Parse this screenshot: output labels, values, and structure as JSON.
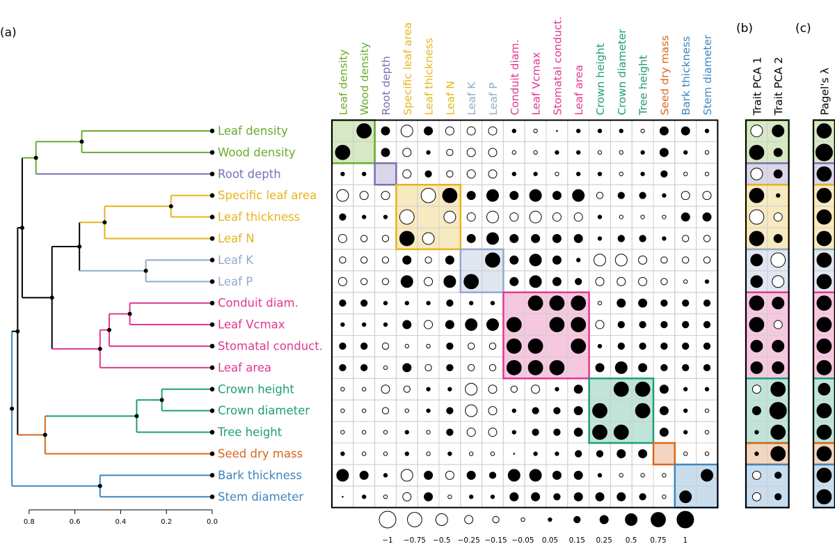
{
  "panels": {
    "a": "(a)",
    "b": "(b)",
    "c": "(c)"
  },
  "traits": [
    "Leaf density",
    "Wood density",
    "Root depth",
    "Specific leaf area",
    "Leaf thickness",
    "Leaf N",
    "Leaf K",
    "Leaf P",
    "Conduit diam.",
    "Leaf Vcmax",
    "Stomatal conduct.",
    "Leaf area",
    "Crown height",
    "Crown diameter",
    "Tree height",
    "Seed dry mass",
    "Bark thickness",
    "Stem diameter"
  ],
  "colors": {
    "green": "#6aab2b",
    "purple": "#7b6fb4",
    "yellow": "#e7b41d",
    "steel": "#93a9cc",
    "magenta": "#e0388f",
    "teal": "#1c9e77",
    "orange": "#d6681b",
    "blue": "#3d86c0"
  },
  "trait_colors": [
    "green",
    "green",
    "purple",
    "yellow",
    "yellow",
    "yellow",
    "steel",
    "steel",
    "magenta",
    "magenta",
    "magenta",
    "magenta",
    "teal",
    "teal",
    "teal",
    "orange",
    "blue",
    "blue"
  ],
  "groups": [
    {
      "start": 0,
      "end": 1,
      "color": "green"
    },
    {
      "start": 2,
      "end": 2,
      "color": "purple"
    },
    {
      "start": 3,
      "end": 5,
      "color": "yellow"
    },
    {
      "start": 6,
      "end": 7,
      "color": "steel"
    },
    {
      "start": 8,
      "end": 11,
      "color": "magenta"
    },
    {
      "start": 12,
      "end": 14,
      "color": "teal"
    },
    {
      "start": 15,
      "end": 15,
      "color": "orange"
    },
    {
      "start": 16,
      "end": 17,
      "color": "blue"
    }
  ],
  "tree_axis": {
    "ticks": [
      0.8,
      0.6,
      0.4,
      0.2,
      0.0
    ],
    "tick_labels": [
      "0.8",
      "0.6",
      "0.4",
      "0.2",
      "0.0"
    ]
  },
  "tree": {
    "name": "root",
    "height": 0.875,
    "color": "blue",
    "children": [
      {
        "name": "A",
        "height": 0.85,
        "color": "black",
        "children": [
          {
            "name": "B",
            "height": 0.83,
            "color": "black",
            "children": [
              {
                "name": "C",
                "height": 0.77,
                "color": "green",
                "children": [
                  {
                    "name": "D",
                    "height": 0.57,
                    "color": "green",
                    "children": [
                      {
                        "leaf": 0
                      },
                      {
                        "leaf": 1
                      }
                    ]
                  },
                  {
                    "leaf": 2,
                    "color": "purple"
                  }
                ]
              },
              {
                "name": "E",
                "height": 0.7,
                "color": "black",
                "children": [
                  {
                    "name": "F",
                    "height": 0.58,
                    "color": "black",
                    "children": [
                      {
                        "name": "G",
                        "height": 0.47,
                        "color": "yellow",
                        "children": [
                          {
                            "name": "H",
                            "height": 0.18,
                            "color": "yellow",
                            "children": [
                              {
                                "leaf": 3
                              },
                              {
                                "leaf": 4
                              }
                            ]
                          },
                          {
                            "leaf": 5
                          }
                        ]
                      },
                      {
                        "name": "I",
                        "height": 0.29,
                        "color": "steel",
                        "children": [
                          {
                            "leaf": 6
                          },
                          {
                            "leaf": 7
                          }
                        ]
                      }
                    ]
                  },
                  {
                    "name": "J",
                    "height": 0.49,
                    "color": "magenta",
                    "children": [
                      {
                        "name": "K",
                        "height": 0.45,
                        "color": "magenta",
                        "children": [
                          {
                            "name": "L",
                            "height": 0.36,
                            "color": "magenta",
                            "children": [
                              {
                                "leaf": 8
                              },
                              {
                                "leaf": 9
                              }
                            ]
                          },
                          {
                            "leaf": 10
                          }
                        ]
                      },
                      {
                        "leaf": 11
                      }
                    ]
                  }
                ]
              }
            ]
          },
          {
            "name": "M",
            "height": 0.73,
            "color": "orange",
            "children": [
              {
                "name": "N",
                "height": 0.33,
                "color": "teal",
                "children": [
                  {
                    "name": "O",
                    "height": 0.22,
                    "color": "teal",
                    "children": [
                      {
                        "leaf": 12
                      },
                      {
                        "leaf": 13
                      }
                    ]
                  },
                  {
                    "leaf": 14
                  }
                ]
              },
              {
                "leaf": 15
              }
            ]
          }
        ]
      },
      {
        "name": "P",
        "height": 0.49,
        "color": "blue",
        "children": [
          {
            "leaf": 16
          },
          {
            "leaf": 17
          }
        ]
      }
    ]
  },
  "chart_data": {
    "type": "heatmap",
    "row_labels": [
      "Leaf density",
      "Wood density",
      "Root depth",
      "Specific leaf area",
      "Leaf thickness",
      "Leaf N",
      "Leaf K",
      "Leaf P",
      "Conduit diam.",
      "Leaf Vcmax",
      "Stomatal conduct.",
      "Leaf area",
      "Crown height",
      "Crown diameter",
      "Tree height",
      "Seed dry mass",
      "Bark thickness",
      "Stem diameter"
    ],
    "col_labels": [
      "Leaf density",
      "Wood density",
      "Root depth",
      "Specific leaf area",
      "Leaf thickness",
      "Leaf N",
      "Leaf K",
      "Leaf P",
      "Conduit diam.",
      "Leaf Vcmax",
      "Stomatal conduct.",
      "Leaf area",
      "Crown height",
      "Crown diameter",
      "Tree height",
      "Seed dry mass",
      "Bark thickness",
      "Stem diameter"
    ],
    "values": [
      [
        null,
        0.75,
        0.25,
        -0.5,
        0.25,
        -0.25,
        -0.25,
        -0.25,
        0.05,
        -0.05,
        0,
        0.05,
        0.05,
        0.05,
        -0.05,
        0.25,
        0.25,
        0.05
      ],
      [
        0.75,
        null,
        0.25,
        -0.25,
        0.05,
        -0.15,
        -0.25,
        -0.25,
        -0.05,
        -0.05,
        0.05,
        0.05,
        -0.05,
        -0.05,
        0.05,
        0.25,
        0.05,
        -0.05
      ],
      [
        0.05,
        0.05,
        null,
        -0.25,
        0.15,
        -0.15,
        -0.25,
        -0.25,
        0.05,
        0.05,
        -0.05,
        0.05,
        0.05,
        -0.05,
        0.05,
        0.15,
        -0.05,
        -0.05
      ],
      [
        -0.5,
        -0.25,
        -0.25,
        null,
        -0.75,
        0.75,
        0.25,
        0.5,
        0.25,
        0.5,
        0.25,
        0.5,
        -0.15,
        0.15,
        0.15,
        0.05,
        -0.25,
        -0.25
      ],
      [
        0.15,
        0.05,
        0.05,
        -0.75,
        null,
        -0.5,
        -0.25,
        -0.5,
        -0.25,
        -0.5,
        -0.25,
        -0.25,
        0.05,
        -0.05,
        -0.05,
        -0.05,
        0.25,
        0.25
      ],
      [
        -0.25,
        -0.15,
        -0.15,
        0.75,
        -0.5,
        null,
        0.25,
        0.5,
        0.25,
        0.25,
        0.25,
        0.25,
        0.05,
        0.15,
        0.15,
        0.05,
        -0.15,
        -0.15
      ],
      [
        -0.15,
        -0.15,
        -0.15,
        0.25,
        -0.15,
        0.25,
        null,
        0.75,
        0.25,
        0.5,
        0.25,
        0.05,
        -0.5,
        -0.5,
        -0.25,
        -0.15,
        -0.15,
        -0.15
      ],
      [
        -0.25,
        -0.15,
        -0.15,
        0.5,
        -0.25,
        0.5,
        0.75,
        null,
        0.25,
        0.5,
        0.25,
        0.15,
        -0.25,
        -0.25,
        -0.25,
        -0.15,
        -0.05,
        0.05
      ],
      [
        0.15,
        0.15,
        0.05,
        0.05,
        0.05,
        0.15,
        0.05,
        0.05,
        null,
        0.75,
        0.75,
        0.75,
        -0.05,
        0.25,
        0.25,
        0.15,
        0.15,
        0.15
      ],
      [
        0.05,
        0.05,
        0.05,
        0.25,
        -0.25,
        0.25,
        0.5,
        0.5,
        0.75,
        null,
        0.75,
        0.75,
        -0.25,
        0.15,
        0.15,
        0.15,
        0.15,
        0.15
      ],
      [
        0.15,
        0.15,
        -0.15,
        -0.05,
        -0.05,
        0.15,
        -0.15,
        -0.15,
        0.75,
        0.75,
        null,
        0.75,
        0.05,
        0.15,
        0.15,
        0.15,
        0.15,
        0.15
      ],
      [
        0.15,
        0.15,
        -0.05,
        0.25,
        -0.15,
        0.15,
        -0.15,
        -0.15,
        0.75,
        0.75,
        0.75,
        null,
        0.25,
        0.5,
        0.25,
        0.15,
        0.15,
        0.15
      ],
      [
        -0.05,
        -0.05,
        -0.25,
        -0.15,
        0.05,
        0.05,
        -0.5,
        -0.25,
        -0.15,
        -0.25,
        0.05,
        0.25,
        null,
        0.75,
        0.75,
        0.25,
        0.05,
        0.05
      ],
      [
        -0.05,
        -0.05,
        -0.15,
        -0.05,
        0.05,
        0.15,
        -0.5,
        -0.25,
        0.05,
        0.15,
        0.15,
        0.25,
        0.75,
        null,
        0.75,
        0.25,
        0.05,
        -0.05
      ],
      [
        -0.05,
        -0.05,
        -0.05,
        0.05,
        -0.05,
        0.15,
        -0.25,
        -0.25,
        0.05,
        0.15,
        0.15,
        0.25,
        0.75,
        0.75,
        null,
        0.25,
        0.05,
        -0.05
      ],
      [
        0.05,
        -0.05,
        -0.05,
        0.05,
        -0.05,
        0.05,
        -0.05,
        -0.05,
        0,
        0.05,
        0.05,
        0.15,
        0.15,
        0.25,
        0.25,
        null,
        -0.05,
        -0.05
      ],
      [
        0.5,
        0.25,
        0.05,
        -0.5,
        0.25,
        -0.25,
        0.25,
        0.15,
        0.5,
        0.5,
        0.25,
        0.25,
        0.05,
        -0.05,
        -0.05,
        -0.05,
        null,
        0.5
      ],
      [
        0,
        0.05,
        -0.05,
        -0.25,
        0.25,
        -0.05,
        0.05,
        0.05,
        0.25,
        0.25,
        0.15,
        0.25,
        0.25,
        0.25,
        0.15,
        -0.05,
        0.5,
        null
      ]
    ],
    "pca": {
      "col_labels": [
        "Trait PCA 1",
        "Trait PCA 2"
      ],
      "values": [
        [
          -0.5,
          0.5
        ],
        [
          0.75,
          0.25
        ],
        [
          -0.5,
          0.25
        ],
        [
          0.75,
          0.05
        ],
        [
          -0.75,
          -0.25
        ],
        [
          0.75,
          0.25
        ],
        [
          0.5,
          -0.75
        ],
        [
          0.5,
          -0.5
        ],
        [
          0.75,
          0.5
        ],
        [
          0.75,
          -0.25
        ],
        [
          0.5,
          0.5
        ],
        [
          0.5,
          0.5
        ],
        [
          -0.25,
          0.75
        ],
        [
          0.25,
          1
        ],
        [
          0.05,
          0.75
        ],
        [
          0.05,
          0.75
        ],
        [
          -0.25,
          0.15
        ],
        [
          -0.25,
          0.15
        ]
      ]
    },
    "lambda": {
      "col_label": "Pagel's λ",
      "values": [
        0.75,
        1,
        0.75,
        0.75,
        0.75,
        0.75,
        0.75,
        0.75,
        0.75,
        0.75,
        0.75,
        0.75,
        0.5,
        0.75,
        0.75,
        0.75,
        0.75,
        0.75
      ]
    },
    "legend": {
      "values": [
        -1,
        -0.75,
        -0.5,
        -0.25,
        -0.15,
        -0.05,
        0.05,
        0.15,
        0.25,
        0.5,
        0.75,
        1
      ],
      "labels": [
        "−1",
        "−0.75",
        "−0.5",
        "−0.25",
        "−0.15",
        "−0.05",
        "0.05",
        "0.15",
        "0.25",
        "0.5",
        "0.75",
        "1"
      ]
    }
  }
}
